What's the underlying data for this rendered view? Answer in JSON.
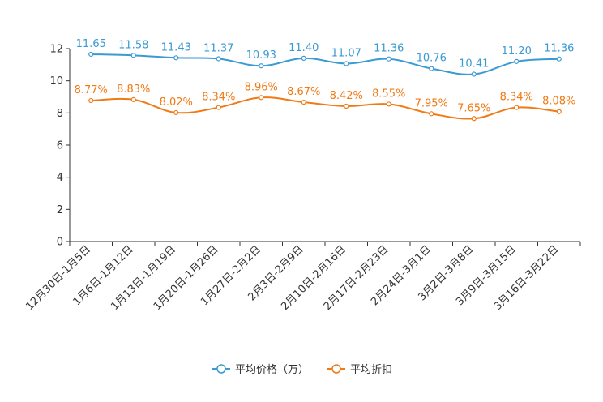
{
  "chart_data": {
    "type": "line",
    "categories": [
      "12月30日-1月5日",
      "1月6日-1月12日",
      "1月13日-1月19日",
      "1月20日-1月26日",
      "1月27日-2月2日",
      "2月3日-2月9日",
      "2月10日-2月16日",
      "2月17日-2月23日",
      "2月24日-3月1日",
      "3月2日-3月8日",
      "3月9日-3月15日",
      "3月16日-3月22日"
    ],
    "series": [
      {
        "name": "平均价格（万）",
        "color": "#3a9ad3",
        "values": [
          11.65,
          11.58,
          11.43,
          11.37,
          10.93,
          11.4,
          11.07,
          11.36,
          10.76,
          10.41,
          11.2,
          11.36
        ],
        "labels": [
          "11.65",
          "11.58",
          "11.43",
          "11.37",
          "10.93",
          "11.40",
          "11.07",
          "11.36",
          "10.76",
          "10.41",
          "11.20",
          "11.36"
        ]
      },
      {
        "name": "平均折扣",
        "color": "#f07a14",
        "values": [
          8.77,
          8.83,
          8.02,
          8.34,
          8.96,
          8.67,
          8.42,
          8.55,
          7.95,
          7.65,
          8.34,
          8.08
        ],
        "labels": [
          "8.77%",
          "8.83%",
          "8.02%",
          "8.34%",
          "8.96%",
          "8.67%",
          "8.42%",
          "8.55%",
          "7.95%",
          "7.65%",
          "8.34%",
          "8.08%"
        ]
      }
    ],
    "yticks": [
      "0",
      "2",
      "4",
      "6",
      "8",
      "10",
      "12"
    ],
    "ylim": [
      0,
      12
    ],
    "title": "",
    "xlabel": "",
    "ylabel": "",
    "legend_position": "bottom-center",
    "grid": false
  }
}
